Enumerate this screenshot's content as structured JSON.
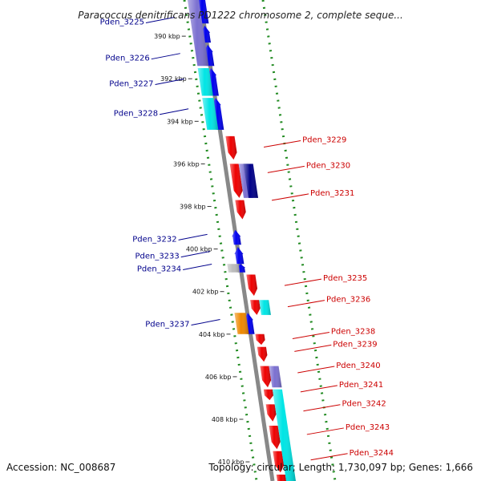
{
  "title": "Paracoccus denitrificans PD1222 chromosome 2, complete seque...",
  "footer": {
    "accession": "Accession: NC_008687",
    "topology": "Topology: circular; Length: 1,730,097 bp; Genes: 1,666"
  },
  "colors": {
    "left_label": "#00008b",
    "right_label": "#cc0000",
    "blue": "#0000ee",
    "light_blue": "#7b70d0",
    "cyan": "#00e5e5",
    "red": "#ee0000",
    "dark_blue": "#000088",
    "orange": "#ee8800",
    "green_dots": "#228b22",
    "backbone": "#888888",
    "grey": "#bbbbbb"
  },
  "scale": {
    "axis_y_start": 0,
    "axis_y_end": 600,
    "kbp_start": 388.3,
    "kbp_end": 410.9,
    "ticks": [
      {
        "kbp": 390,
        "label": "390 kbp"
      },
      {
        "kbp": 392,
        "label": "392 kbp"
      },
      {
        "kbp": 394,
        "label": "394 kbp"
      },
      {
        "kbp": 396,
        "label": "396 kbp"
      },
      {
        "kbp": 398,
        "label": "398 kbp"
      },
      {
        "kbp": 400,
        "label": "400 kbp"
      },
      {
        "kbp": 402,
        "label": "402 kbp"
      },
      {
        "kbp": 404,
        "label": "404 kbp"
      },
      {
        "kbp": 406,
        "label": "406 kbp"
      },
      {
        "kbp": 408,
        "label": "408 kbp"
      },
      {
        "kbp": 410,
        "label": "410 kbp"
      }
    ]
  },
  "features": [
    {
      "track": "plus_gene",
      "color": "blue",
      "start": 388.3,
      "end": 389.4,
      "arrow": false
    },
    {
      "track": "plus_gene",
      "color": "blue",
      "start": 389.5,
      "end": 390.3,
      "arrow": true
    },
    {
      "track": "plus_gene",
      "color": "blue",
      "start": 390.4,
      "end": 391.4,
      "arrow": true
    },
    {
      "track": "plus_gene",
      "color": "blue",
      "start": 391.5,
      "end": 392.8,
      "arrow": true
    },
    {
      "track": "plus_gene",
      "color": "blue",
      "start": 392.9,
      "end": 394.4,
      "arrow": true
    },
    {
      "track": "plus_cds",
      "color": "light_blue",
      "start": 388.3,
      "end": 391.4,
      "arrow": false
    },
    {
      "track": "plus_cds",
      "color": "cyan",
      "start": 391.5,
      "end": 392.8,
      "arrow": false
    },
    {
      "track": "plus_cds",
      "color": "cyan",
      "start": 392.9,
      "end": 394.4,
      "arrow": false
    },
    {
      "track": "plus_gene",
      "color": "blue",
      "start": 399.1,
      "end": 399.8,
      "arrow": true
    },
    {
      "track": "plus_gene",
      "color": "blue",
      "start": 399.9,
      "end": 400.7,
      "arrow": true
    },
    {
      "track": "plus_gene",
      "color": "blue",
      "start": 400.7,
      "end": 401.1,
      "arrow": true
    },
    {
      "track": "plus_cds",
      "color": "grey",
      "start": 400.7,
      "end": 401.1,
      "arrow": false
    },
    {
      "track": "plus_gene",
      "color": "blue",
      "start": 403.0,
      "end": 404.0,
      "arrow": true
    },
    {
      "track": "plus_cds",
      "color": "orange",
      "start": 403.0,
      "end": 404.0,
      "arrow": false
    },
    {
      "track": "minus_gene",
      "color": "red",
      "start": 394.7,
      "end": 395.8,
      "arrow": true
    },
    {
      "track": "minus_gene",
      "color": "red",
      "start": 396.0,
      "end": 397.6,
      "arrow": true
    },
    {
      "track": "minus_gene",
      "color": "red",
      "start": 397.7,
      "end": 398.6,
      "arrow": true
    },
    {
      "track": "minus_cds",
      "color": "light_blue",
      "start": 396.0,
      "end": 397.6,
      "arrow": false
    },
    {
      "track": "minus_cds",
      "color": "dark_blue",
      "start": 396.0,
      "end": 397.6,
      "arrow": false,
      "offset": 6
    },
    {
      "track": "minus_gene",
      "color": "red",
      "start": 401.2,
      "end": 402.2,
      "arrow": true
    },
    {
      "track": "minus_gene",
      "color": "red",
      "start": 402.4,
      "end": 403.1,
      "arrow": true
    },
    {
      "track": "minus_cds",
      "color": "cyan",
      "start": 402.4,
      "end": 403.1,
      "arrow": false
    },
    {
      "track": "minus_gene",
      "color": "red",
      "start": 404.0,
      "end": 404.5,
      "arrow": true
    },
    {
      "track": "minus_gene",
      "color": "red",
      "start": 404.6,
      "end": 405.3,
      "arrow": true
    },
    {
      "track": "minus_gene",
      "color": "red",
      "start": 405.5,
      "end": 406.5,
      "arrow": true
    },
    {
      "track": "minus_gene",
      "color": "red",
      "start": 406.6,
      "end": 407.1,
      "arrow": true
    },
    {
      "track": "minus_gene",
      "color": "red",
      "start": 407.3,
      "end": 408.1,
      "arrow": true
    },
    {
      "track": "minus_gene",
      "color": "red",
      "start": 408.3,
      "end": 409.4,
      "arrow": true
    },
    {
      "track": "minus_gene",
      "color": "red",
      "start": 409.5,
      "end": 410.5,
      "arrow": true
    },
    {
      "track": "minus_gene",
      "color": "red",
      "start": 410.6,
      "end": 410.9,
      "arrow": false
    },
    {
      "track": "minus_cds",
      "color": "light_blue",
      "start": 405.5,
      "end": 406.5,
      "arrow": false
    },
    {
      "track": "minus_cds",
      "color": "cyan",
      "start": 406.6,
      "end": 410.9,
      "arrow": false
    }
  ],
  "labels": [
    {
      "name": "Pden_3225",
      "side": "left",
      "kbp": 389.3
    },
    {
      "name": "Pden_3226",
      "side": "left",
      "kbp": 391.0
    },
    {
      "name": "Pden_3227",
      "side": "left",
      "kbp": 392.2
    },
    {
      "name": "Pden_3228",
      "side": "left",
      "kbp": 393.6
    },
    {
      "name": "Pden_3229",
      "side": "right",
      "kbp": 395.1
    },
    {
      "name": "Pden_3230",
      "side": "right",
      "kbp": 396.3
    },
    {
      "name": "Pden_3231",
      "side": "right",
      "kbp": 397.6
    },
    {
      "name": "Pden_3232",
      "side": "left",
      "kbp": 399.5
    },
    {
      "name": "Pden_3233",
      "side": "left",
      "kbp": 400.3
    },
    {
      "name": "Pden_3234",
      "side": "left",
      "kbp": 400.9
    },
    {
      "name": "Pden_3235",
      "side": "right",
      "kbp": 401.6
    },
    {
      "name": "Pden_3236",
      "side": "right",
      "kbp": 402.6
    },
    {
      "name": "Pden_3237",
      "side": "left",
      "kbp": 403.5
    },
    {
      "name": "Pden_3238",
      "side": "right",
      "kbp": 404.1
    },
    {
      "name": "Pden_3239",
      "side": "right",
      "kbp": 404.7
    },
    {
      "name": "Pden_3240",
      "side": "right",
      "kbp": 405.7
    },
    {
      "name": "Pden_3241",
      "side": "right",
      "kbp": 406.6
    },
    {
      "name": "Pden_3242",
      "side": "right",
      "kbp": 407.5
    },
    {
      "name": "Pden_3243",
      "side": "right",
      "kbp": 408.6
    },
    {
      "name": "Pden_3244",
      "side": "right",
      "kbp": 409.8
    }
  ]
}
